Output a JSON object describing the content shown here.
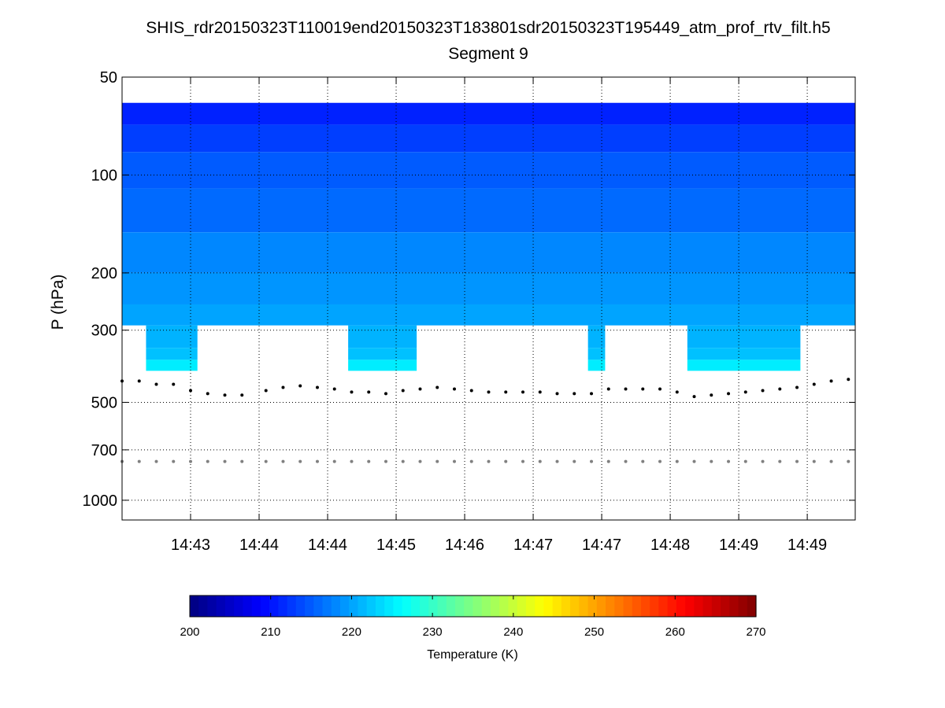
{
  "chart_data": {
    "type": "heatmap",
    "title": "SHIS_rdr20150323T110019end20150323T183801sdr20150323T195449_atm_prof_rtv_filt.h5",
    "subtitle": "Segment 9",
    "ylabel": "P (hPa)",
    "yscale": "log",
    "y_reversed": true,
    "ylim": [
      50,
      1150
    ],
    "y_ticks": [
      50,
      100,
      200,
      300,
      500,
      700,
      1000
    ],
    "x_ticks": [
      "14:43",
      "14:44",
      "14:44",
      "14:45",
      "14:46",
      "14:47",
      "14:47",
      "14:48",
      "14:49",
      "14:49"
    ],
    "xlim": [
      0,
      10.7
    ],
    "x_tick_positions": [
      1,
      2,
      3,
      4,
      5,
      6,
      7,
      8,
      9,
      10
    ],
    "grid": true,
    "colorbar": {
      "label": "Temperature (K)",
      "range": [
        200,
        270
      ],
      "ticks": [
        200,
        210,
        220,
        230,
        240,
        250,
        260,
        270
      ],
      "colormap": "jet"
    },
    "profile_top_hPa": 60,
    "profile_bottom_hPa": 290,
    "extended_segments": [
      {
        "x_start": 0.35,
        "x_end": 1.1,
        "bottom_hPa": 400
      },
      {
        "x_start": 3.3,
        "x_end": 4.3,
        "bottom_hPa": 400
      },
      {
        "x_start": 6.8,
        "x_end": 7.05,
        "bottom_hPa": 400
      },
      {
        "x_start": 8.25,
        "x_end": 9.9,
        "bottom_hPa": 400
      }
    ],
    "temperature_layers": [
      {
        "p_top": 60,
        "p_bottom": 70,
        "T": 211
      },
      {
        "p_top": 70,
        "p_bottom": 85,
        "T": 213
      },
      {
        "p_top": 85,
        "p_bottom": 110,
        "T": 215
      },
      {
        "p_top": 110,
        "p_bottom": 150,
        "T": 216
      },
      {
        "p_top": 150,
        "p_bottom": 200,
        "T": 218
      },
      {
        "p_top": 200,
        "p_bottom": 250,
        "T": 219
      },
      {
        "p_top": 250,
        "p_bottom": 290,
        "T": 220
      },
      {
        "p_top": 290,
        "p_bottom": 340,
        "T": 221
      },
      {
        "p_top": 340,
        "p_bottom": 370,
        "T": 222
      },
      {
        "p_top": 370,
        "p_bottom": 400,
        "T": 225
      }
    ],
    "series": [
      {
        "marker": "black-dots",
        "x": [
          0.0,
          0.25,
          0.5,
          0.75,
          1.0,
          1.25,
          1.5,
          1.75,
          2.1,
          2.35,
          2.6,
          2.85,
          3.1,
          3.35,
          3.6,
          3.85,
          4.1,
          4.35,
          4.6,
          4.85,
          5.1,
          5.35,
          5.6,
          5.85,
          6.1,
          6.35,
          6.6,
          6.85,
          7.1,
          7.35,
          7.6,
          7.85,
          8.1,
          8.35,
          8.6,
          8.85,
          9.1,
          9.35,
          9.6,
          9.85,
          10.1,
          10.35,
          10.6
        ],
        "y": [
          430,
          430,
          440,
          440,
          460,
          470,
          475,
          475,
          460,
          450,
          445,
          450,
          455,
          465,
          465,
          470,
          460,
          455,
          450,
          455,
          460,
          465,
          465,
          465,
          465,
          470,
          470,
          470,
          455,
          455,
          455,
          455,
          465,
          480,
          475,
          470,
          465,
          460,
          455,
          450,
          440,
          430,
          425
        ]
      },
      {
        "marker": "gray-dots",
        "x": [
          0.0,
          0.25,
          0.5,
          0.75,
          1.0,
          1.25,
          1.5,
          1.75,
          2.1,
          2.35,
          2.6,
          2.85,
          3.1,
          3.35,
          3.6,
          3.85,
          4.1,
          4.35,
          4.6,
          4.85,
          5.1,
          5.35,
          5.6,
          5.85,
          6.1,
          6.35,
          6.6,
          6.85,
          7.1,
          7.35,
          7.6,
          7.85,
          8.1,
          8.35,
          8.6,
          8.85,
          9.1,
          9.35,
          9.6,
          9.85,
          10.1,
          10.35,
          10.6
        ],
        "y": [
          760,
          760,
          760,
          760,
          760,
          760,
          760,
          760,
          760,
          760,
          760,
          760,
          760,
          760,
          760,
          760,
          760,
          760,
          760,
          760,
          760,
          760,
          760,
          760,
          760,
          760,
          760,
          760,
          760,
          760,
          760,
          760,
          760,
          760,
          760,
          760,
          760,
          760,
          760,
          760,
          760,
          760,
          760
        ]
      }
    ]
  }
}
